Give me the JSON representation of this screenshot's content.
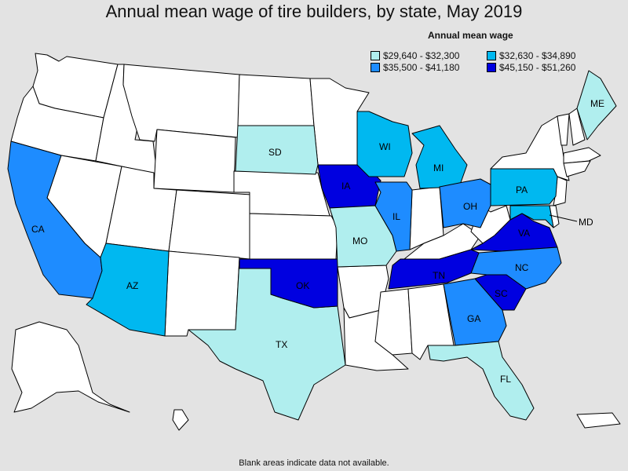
{
  "title": "Annual mean wage of tire builders, by state, May 2019",
  "legend": {
    "title": "Annual mean wage",
    "bins": [
      {
        "label": "$29,640 - $32,300",
        "color": "#b0eeee"
      },
      {
        "label": "$32,630 - $34,890",
        "color": "#00b8f0"
      },
      {
        "label": "$35,500 - $41,180",
        "color": "#1e8cff"
      },
      {
        "label": "$45,150 - $51,260",
        "color": "#0000e0"
      }
    ]
  },
  "no_data_color": "#ffffff",
  "footnote": "Blank areas indicate data not available.",
  "states": [
    {
      "abbr": "CA",
      "bin": 2
    },
    {
      "abbr": "AZ",
      "bin": 1
    },
    {
      "abbr": "TX",
      "bin": 0
    },
    {
      "abbr": "OK",
      "bin": 3
    },
    {
      "abbr": "SD",
      "bin": 0
    },
    {
      "abbr": "IA",
      "bin": 3
    },
    {
      "abbr": "MO",
      "bin": 0
    },
    {
      "abbr": "WI",
      "bin": 1
    },
    {
      "abbr": "IL",
      "bin": 2
    },
    {
      "abbr": "MI",
      "bin": 1
    },
    {
      "abbr": "OH",
      "bin": 2
    },
    {
      "abbr": "PA",
      "bin": 1
    },
    {
      "abbr": "MD",
      "bin": 1
    },
    {
      "abbr": "VA",
      "bin": 3
    },
    {
      "abbr": "NC",
      "bin": 2
    },
    {
      "abbr": "SC",
      "bin": 3
    },
    {
      "abbr": "TN",
      "bin": 3
    },
    {
      "abbr": "GA",
      "bin": 2
    },
    {
      "abbr": "FL",
      "bin": 0
    },
    {
      "abbr": "ME",
      "bin": 0
    }
  ]
}
